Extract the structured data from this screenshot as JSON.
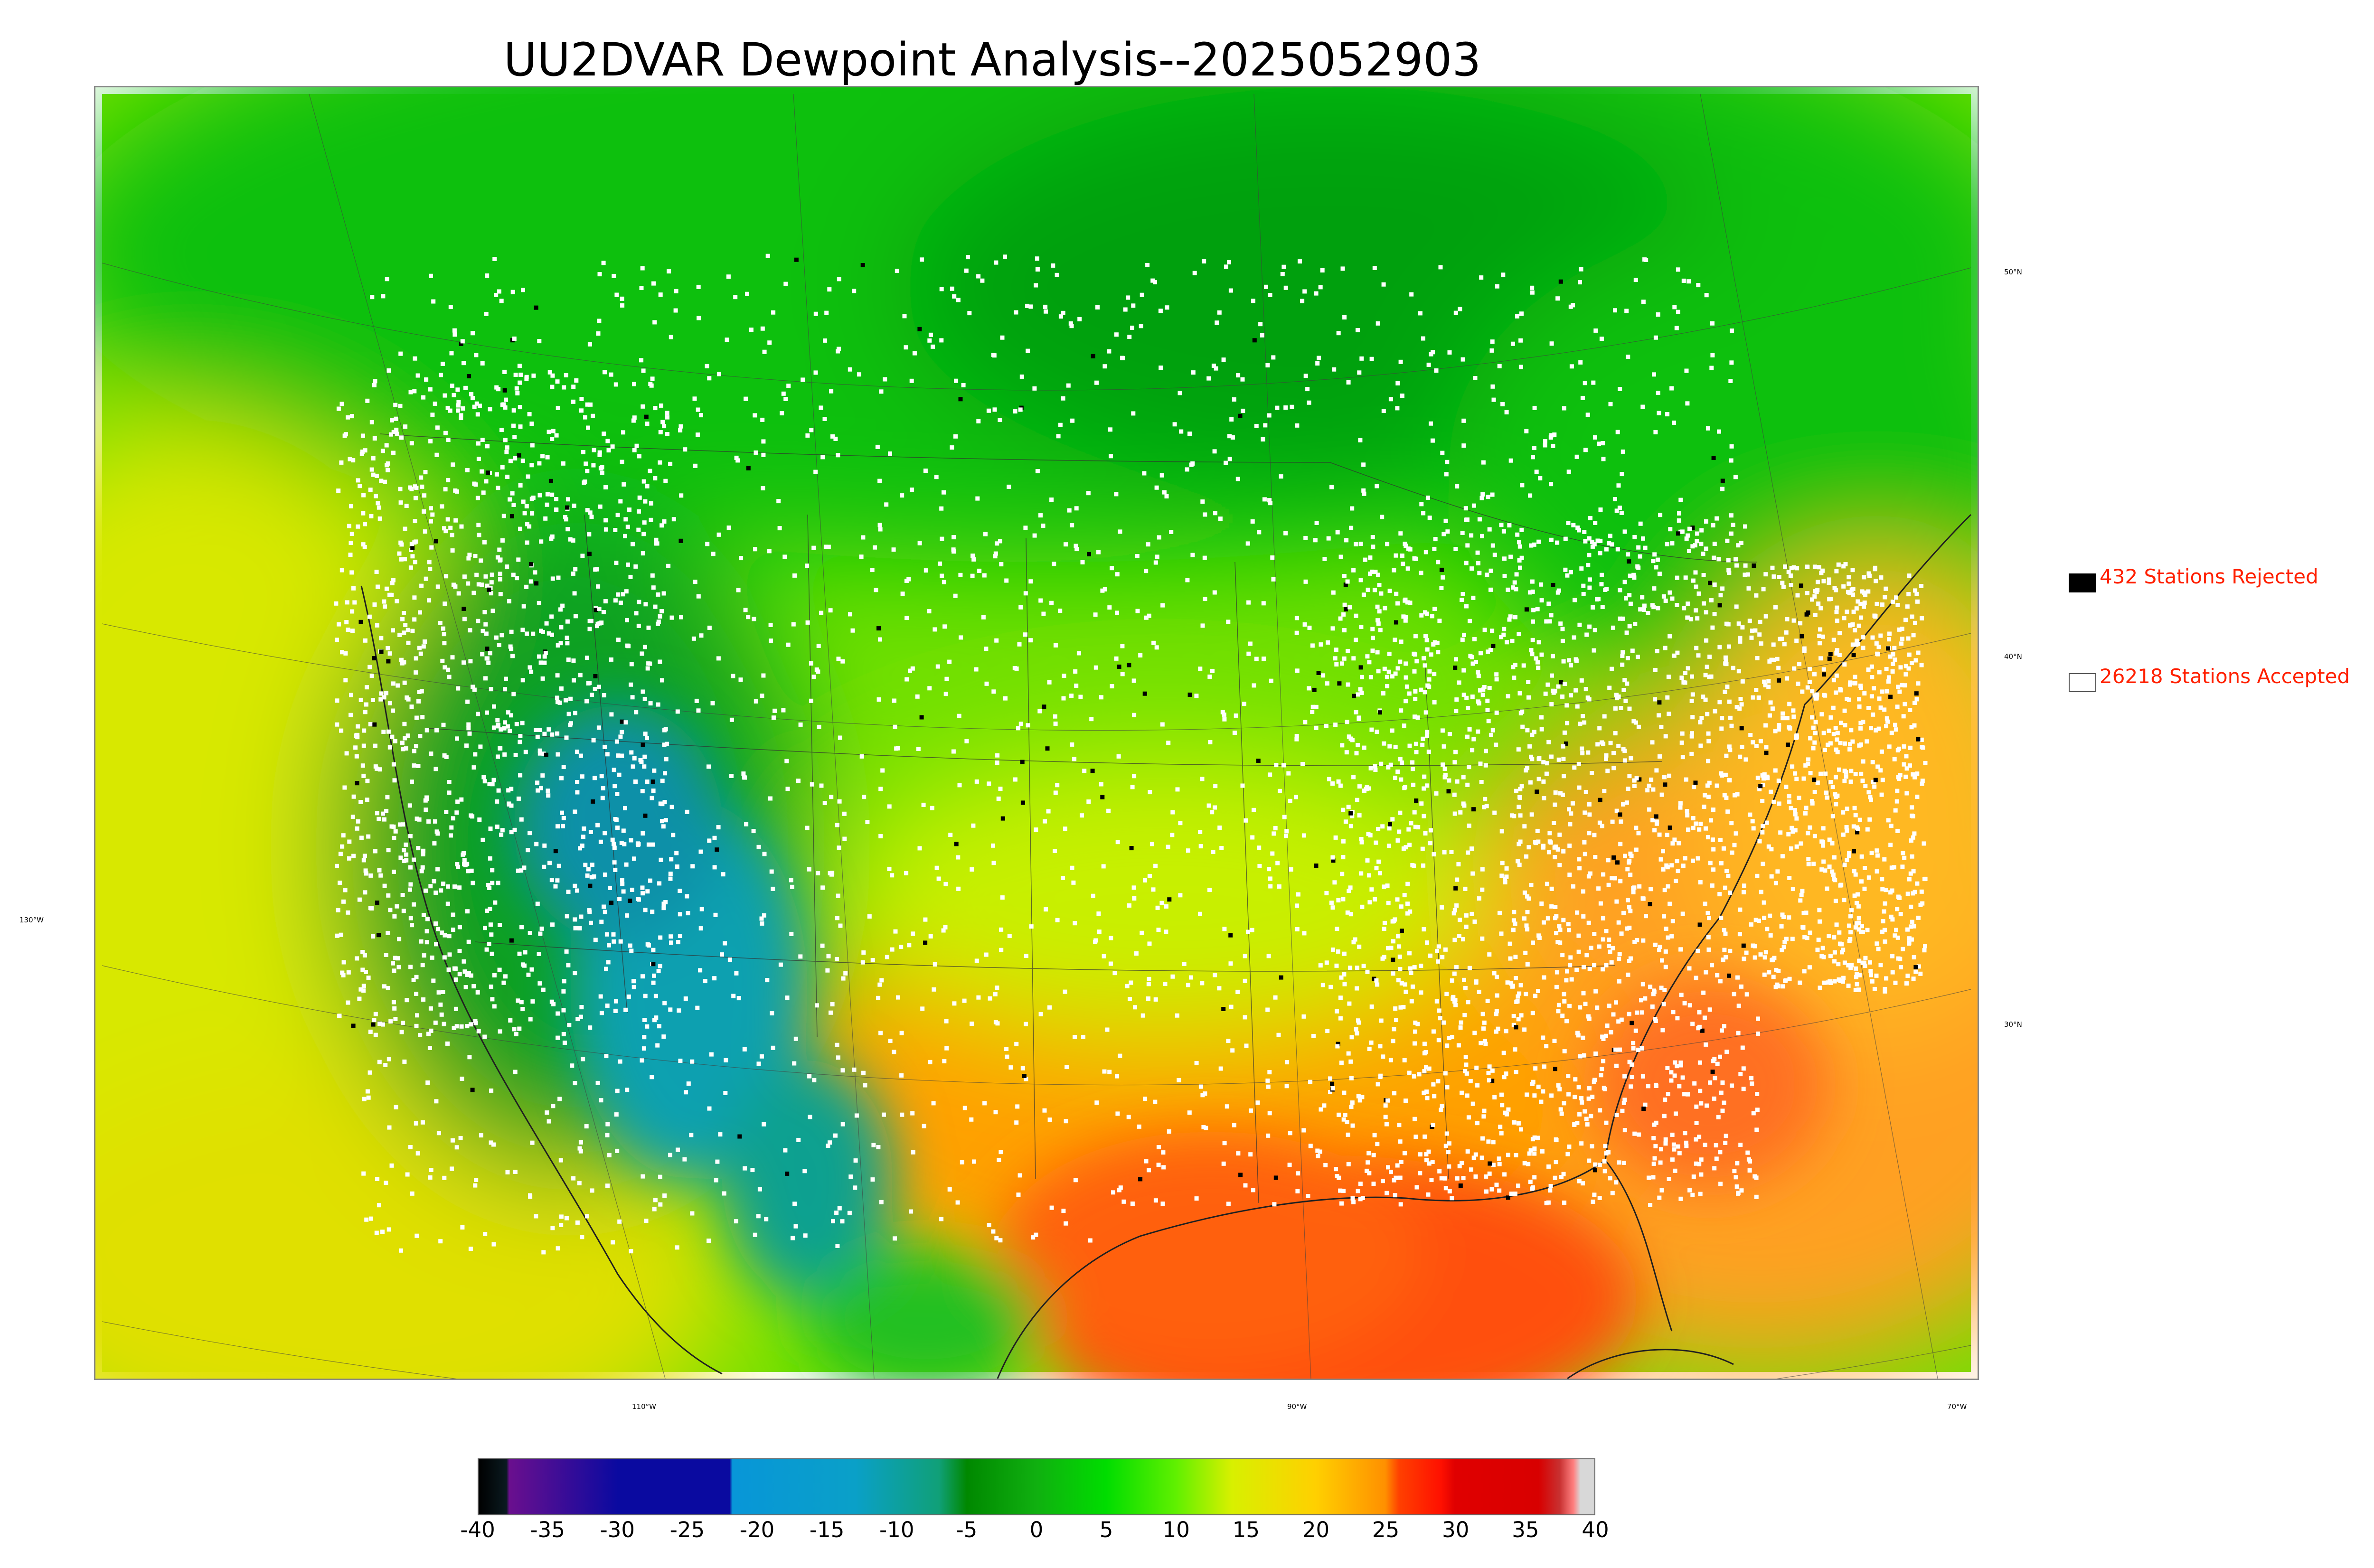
{
  "title": "UU2DVAR Dewpoint Analysis--2025052903",
  "map": {
    "lat_labels": [
      "50°N",
      "40°N",
      "30°N"
    ],
    "lon_labels_left": [
      "130°W"
    ],
    "lon_labels_bottom": [
      "110°W",
      "90°W",
      "70°W"
    ]
  },
  "legend": {
    "rejected": {
      "label": "432 Stations Rejected",
      "count": 432,
      "swatch_color": "#000000"
    },
    "accepted": {
      "label": "26218 Stations Accepted",
      "count": 26218,
      "swatch_color": "#ffffff"
    }
  },
  "colorbar": {
    "min": -40,
    "max": 40,
    "tick_labels": [
      "-40",
      "-35",
      "-30",
      "-25",
      "-20",
      "-15",
      "-10",
      "-5",
      "0",
      "5",
      "10",
      "15",
      "20",
      "25",
      "30",
      "35",
      "40"
    ],
    "stops": [
      {
        "value": -40,
        "color": "#000000"
      },
      {
        "value": -38,
        "color": "#0a1a20"
      },
      {
        "value": -37.8,
        "color": "#6a0f8e"
      },
      {
        "value": -30,
        "color": "#0a0aa0"
      },
      {
        "value": -22,
        "color": "#0a0aa0"
      },
      {
        "value": -21.8,
        "color": "#0896d8"
      },
      {
        "value": -13,
        "color": "#0aa0c8"
      },
      {
        "value": -7,
        "color": "#10a078"
      },
      {
        "value": -5,
        "color": "#008800"
      },
      {
        "value": 0,
        "color": "#10b010"
      },
      {
        "value": 5,
        "color": "#00dd00"
      },
      {
        "value": 10,
        "color": "#60f000"
      },
      {
        "value": 14,
        "color": "#d8f000"
      },
      {
        "value": 20,
        "color": "#ffd000"
      },
      {
        "value": 25,
        "color": "#ff9000"
      },
      {
        "value": 26,
        "color": "#ff4000"
      },
      {
        "value": 29,
        "color": "#ff1000"
      },
      {
        "value": 30,
        "color": "#e00000"
      },
      {
        "value": 36,
        "color": "#d80000"
      },
      {
        "value": 37.5,
        "color": "#c83030"
      },
      {
        "value": 38.5,
        "color": "#ff8080"
      },
      {
        "value": 39,
        "color": "#d8d8d8"
      },
      {
        "value": 40,
        "color": "#d8d8d8"
      }
    ]
  },
  "colors": {
    "gulf": "#ff5010",
    "atlantic": "#ffa020",
    "pacific": "#d8e800",
    "canada": "#10c010",
    "desert": "#10a0b0",
    "station_accepted": "#ffffff",
    "station_rejected": "#000000"
  }
}
